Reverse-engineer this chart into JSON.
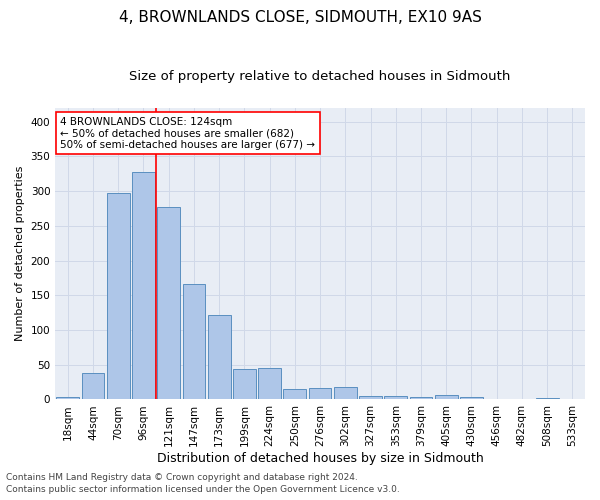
{
  "title": "4, BROWNLANDS CLOSE, SIDMOUTH, EX10 9AS",
  "subtitle": "Size of property relative to detached houses in Sidmouth",
  "xlabel": "Distribution of detached houses by size in Sidmouth",
  "ylabel": "Number of detached properties",
  "bar_labels": [
    "18sqm",
    "44sqm",
    "70sqm",
    "96sqm",
    "121sqm",
    "147sqm",
    "173sqm",
    "199sqm",
    "224sqm",
    "250sqm",
    "276sqm",
    "302sqm",
    "327sqm",
    "353sqm",
    "379sqm",
    "405sqm",
    "430sqm",
    "456sqm",
    "482sqm",
    "508sqm",
    "533sqm"
  ],
  "bar_values": [
    3,
    38,
    297,
    328,
    277,
    166,
    121,
    44,
    46,
    15,
    16,
    18,
    5,
    5,
    4,
    6,
    3,
    1,
    0,
    2,
    0
  ],
  "bar_color": "#aec6e8",
  "bar_edge_color": "#5a8fc0",
  "vline_color": "red",
  "vline_x_index": 3.5,
  "annotation_text": "4 BROWNLANDS CLOSE: 124sqm\n← 50% of detached houses are smaller (682)\n50% of semi-detached houses are larger (677) →",
  "annotation_box_color": "white",
  "annotation_box_edge_color": "red",
  "ylim": [
    0,
    420
  ],
  "yticks": [
    0,
    50,
    100,
    150,
    200,
    250,
    300,
    350,
    400
  ],
  "grid_color": "#d0d8e8",
  "bg_color": "#e8edf5",
  "footer_line1": "Contains HM Land Registry data © Crown copyright and database right 2024.",
  "footer_line2": "Contains public sector information licensed under the Open Government Licence v3.0.",
  "title_fontsize": 11,
  "subtitle_fontsize": 9.5,
  "xlabel_fontsize": 9,
  "ylabel_fontsize": 8,
  "tick_fontsize": 7.5,
  "footer_fontsize": 6.5,
  "annot_fontsize": 7.5
}
